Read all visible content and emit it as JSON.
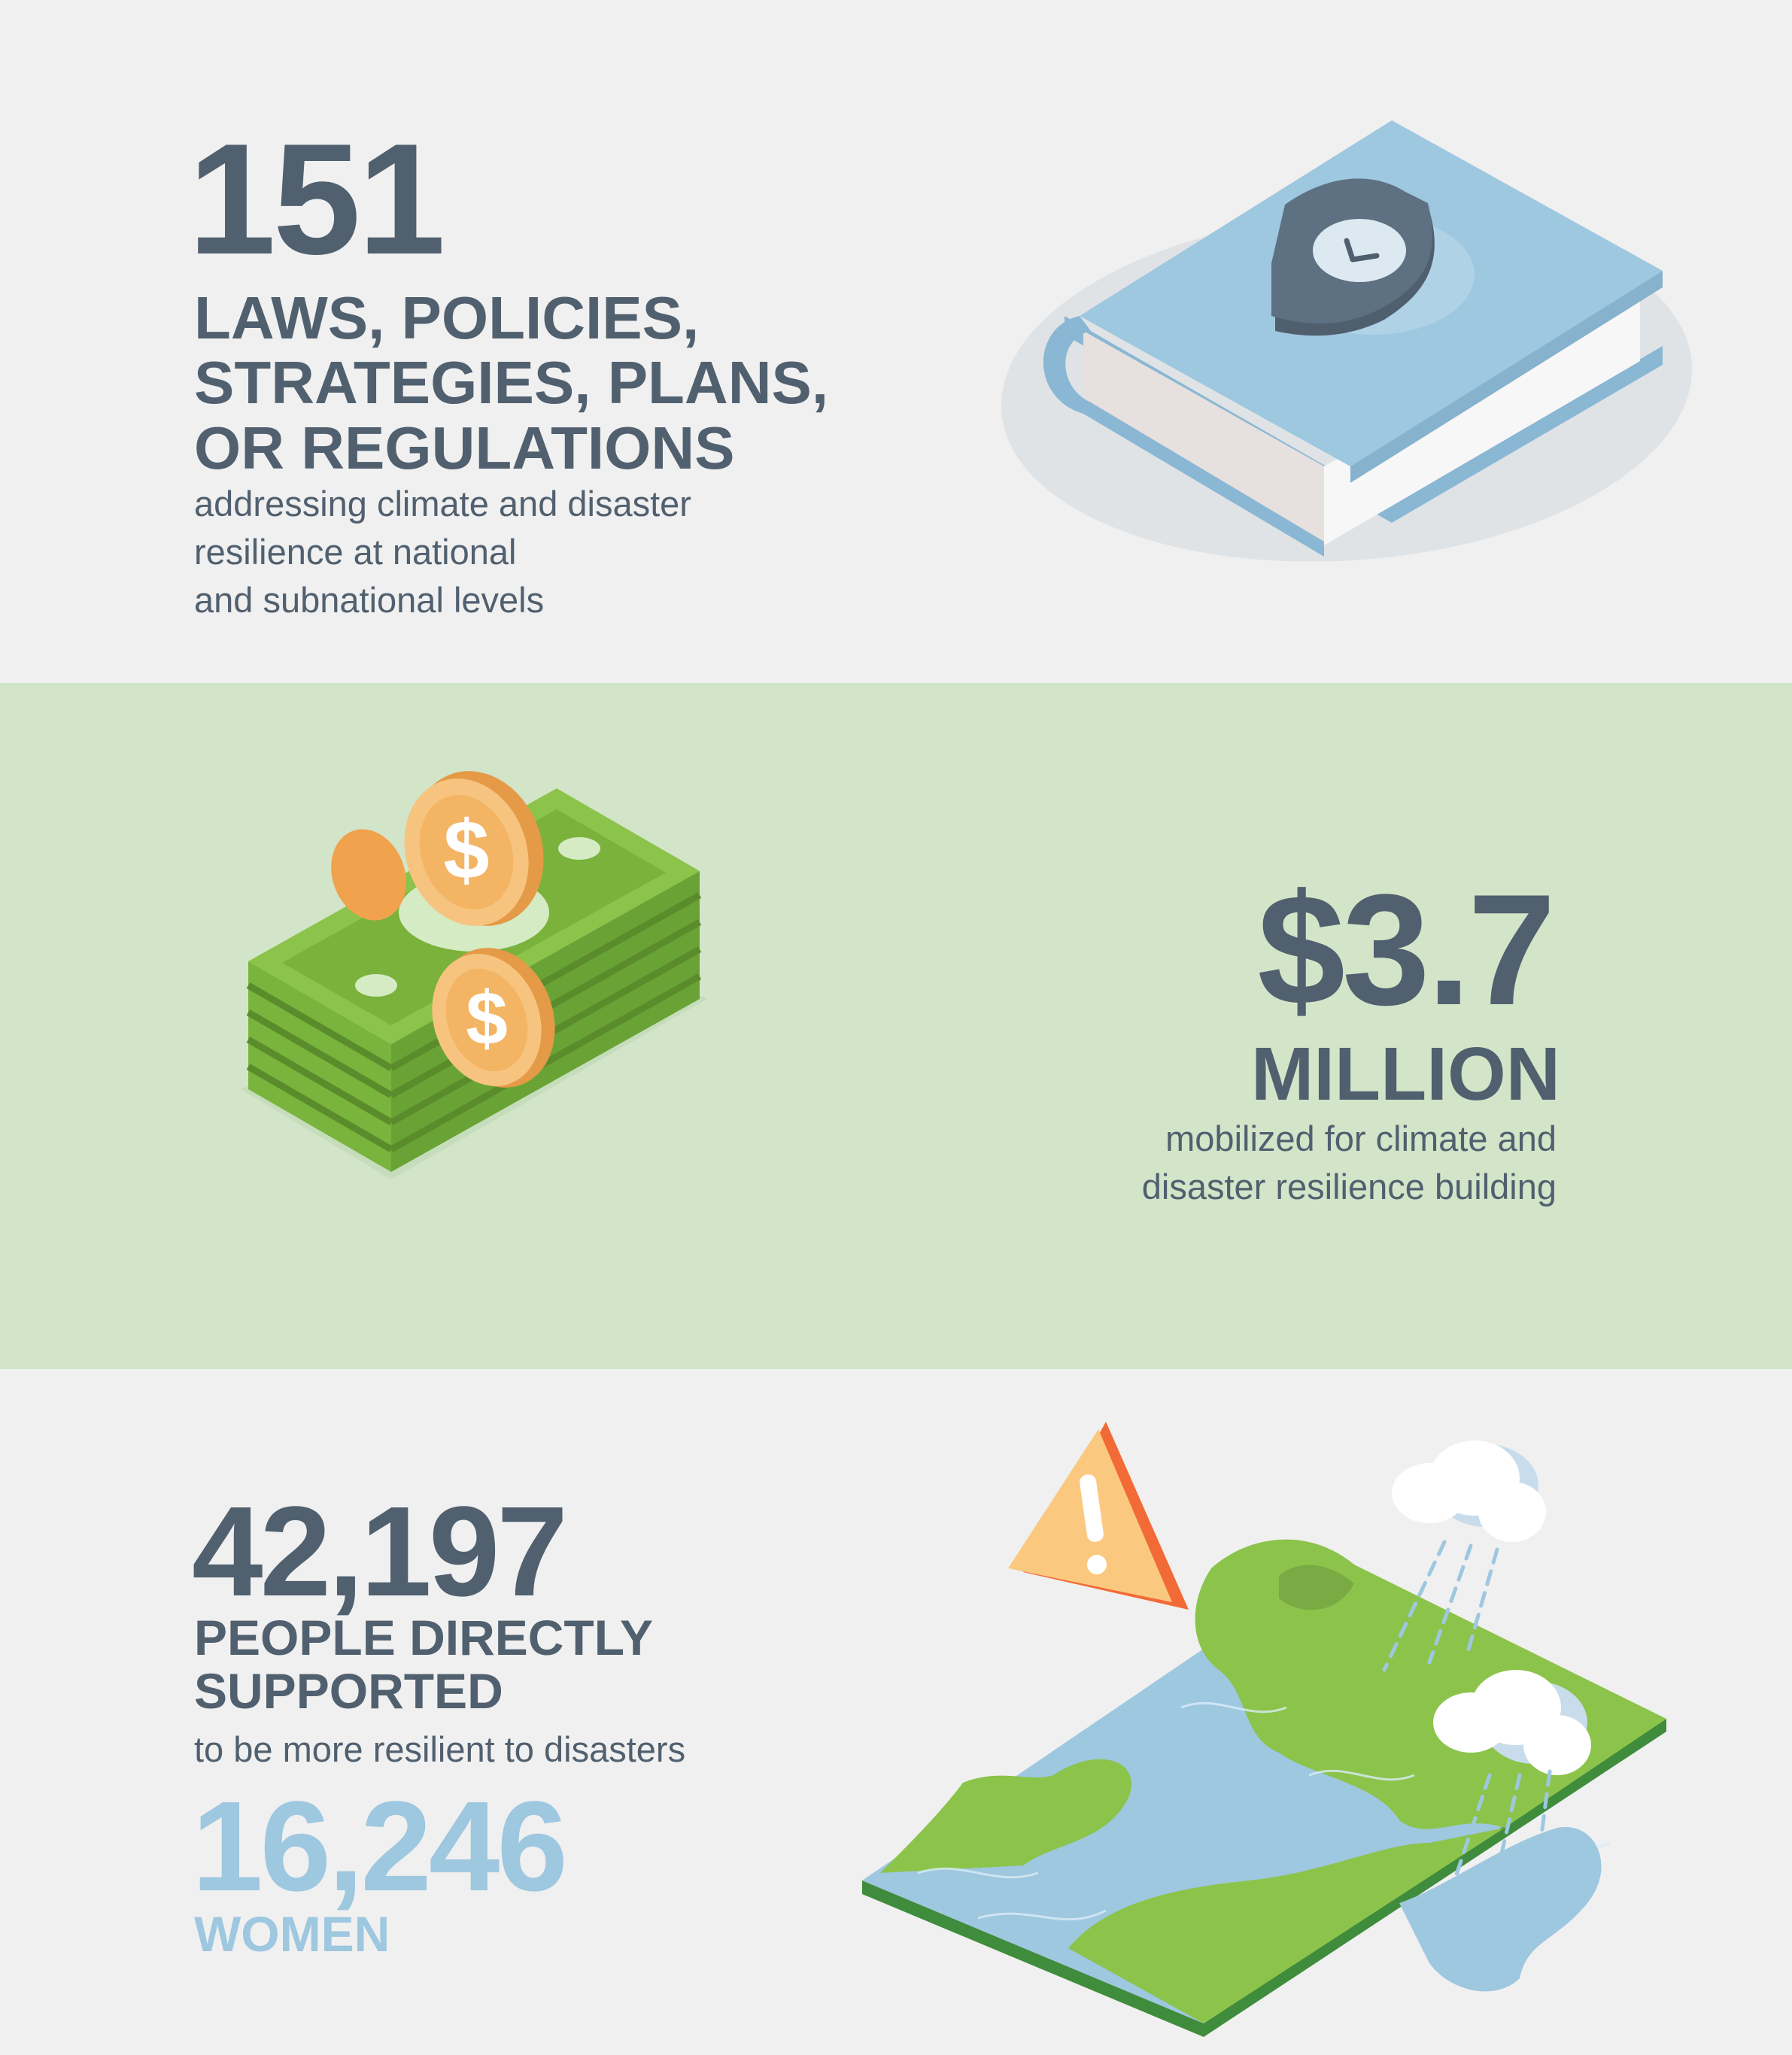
{
  "section_laws": {
    "number": "151",
    "heading_lines": [
      "LAWS, POLICIES,",
      "STRATEGIES, PLANS,",
      "OR REGULATIONS"
    ],
    "description_lines": [
      "addressing climate and disaster",
      "resilience at national",
      "and subnational levels"
    ],
    "icon": "book-shield-icon"
  },
  "section_money": {
    "number": "$3.7",
    "heading": "MILLION",
    "description_lines": [
      "mobilized for climate and",
      "disaster resilience building"
    ],
    "icon": "cash-coins-icon"
  },
  "section_people": {
    "number": "42,197",
    "heading_lines": [
      "PEOPLE DIRECTLY",
      "SUPPORTED"
    ],
    "description": "to be more resilient to disasters",
    "women_number": "16,246",
    "women_label": "WOMEN",
    "icon": "disaster-map-icon"
  },
  "colors": {
    "text_dark": "#51606f",
    "accent_blue": "#9ec7e0",
    "band_green": "#d3e5c9",
    "band_gray": "#f0f0f0"
  }
}
